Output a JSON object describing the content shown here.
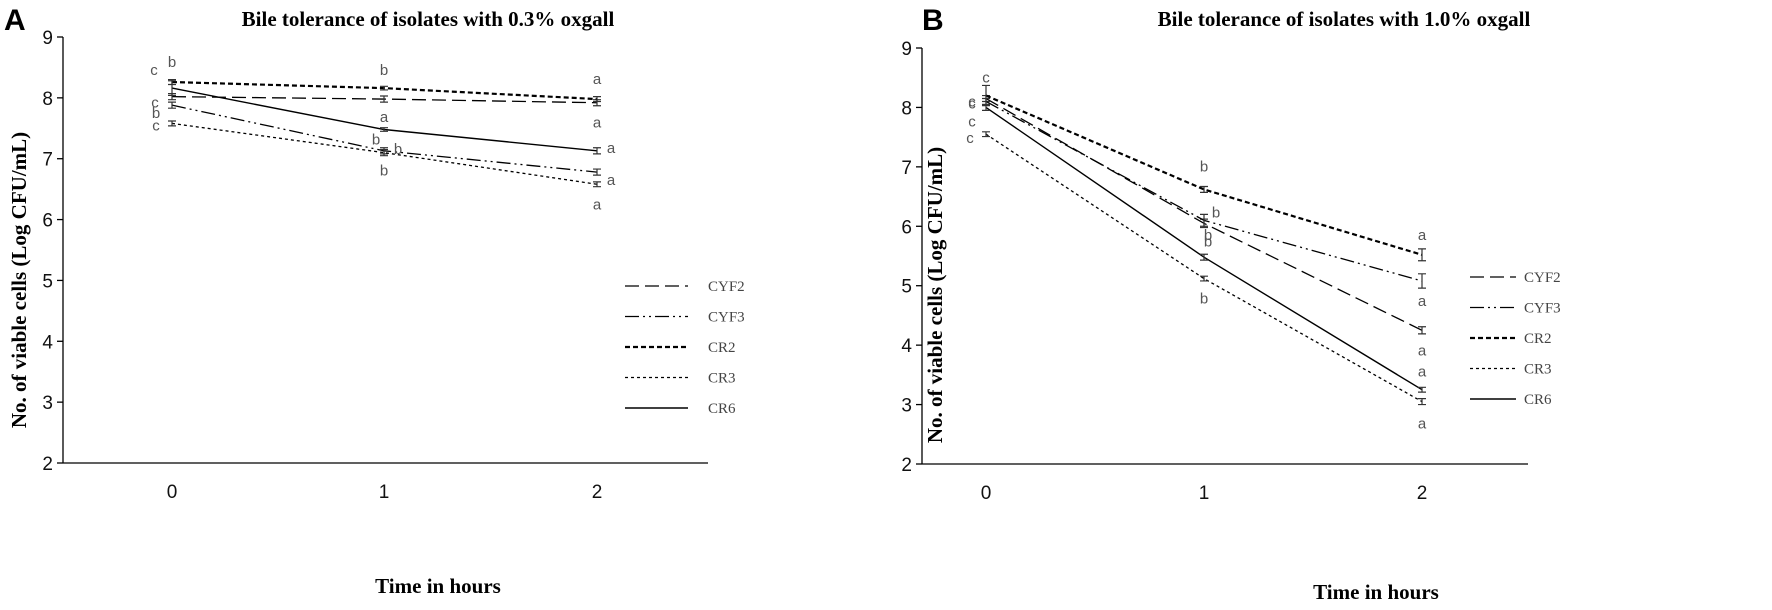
{
  "chart_data": [
    {
      "type": "line",
      "panel": "A",
      "title": "Bile tolerance of isolates with 0.3% oxgall",
      "xlabel": "Time in hours",
      "ylabel": "No. of viable cells (Log CFU/mL)",
      "x": [
        0,
        1,
        2
      ],
      "x_tick_labels": [
        "0",
        "1",
        "2"
      ],
      "ylim": [
        2,
        9
      ],
      "y_ticks": [
        2,
        3,
        4,
        5,
        6,
        7,
        8,
        9
      ],
      "legend_position": "right",
      "series": [
        {
          "name": "CYF2",
          "dash": "long-dash",
          "values": [
            8.02,
            7.98,
            7.92
          ],
          "errors": [
            0.05,
            0.05,
            0.05
          ],
          "sig_letters": [
            "c",
            "a",
            "a"
          ]
        },
        {
          "name": "CYF3",
          "dash": "dash-dot-dot",
          "values": [
            7.88,
            7.13,
            6.78
          ],
          "errors": [
            0.05,
            0.05,
            0.05
          ],
          "sig_letters": [
            "b",
            "b",
            "a"
          ]
        },
        {
          "name": "CR2",
          "dash": "short-dash-bold",
          "values": [
            8.26,
            8.16,
            7.98
          ],
          "errors": [
            0.04,
            0.03,
            0.04
          ],
          "sig_letters": [
            "b",
            "b",
            "a"
          ]
        },
        {
          "name": "CR3",
          "dash": "short-dash",
          "values": [
            7.58,
            7.1,
            6.58
          ],
          "errors": [
            0.04,
            0.05,
            0.04
          ],
          "sig_letters": [
            "c",
            "b",
            "a"
          ]
        },
        {
          "name": "CR6",
          "dash": "solid",
          "values": [
            8.16,
            7.48,
            7.13
          ],
          "errors": [
            0.12,
            0.03,
            0.05
          ],
          "sig_letters": [
            "c",
            "b",
            "a"
          ]
        }
      ]
    },
    {
      "type": "line",
      "panel": "B",
      "title": "Bile tolerance of isolates with 1.0% oxgall",
      "xlabel": "Time in hours",
      "ylabel": "No. of viable cells (Log CFU/mL)",
      "x": [
        0,
        1,
        2
      ],
      "x_tick_labels": [
        "0",
        "1",
        "2"
      ],
      "ylim": [
        2,
        9
      ],
      "y_ticks": [
        2,
        3,
        4,
        5,
        6,
        7,
        8,
        9
      ],
      "legend_position": "right",
      "series": [
        {
          "name": "CYF2",
          "dash": "long-dash",
          "values": [
            8.15,
            6.05,
            4.25
          ],
          "errors": [
            0.05,
            0.07,
            0.06
          ],
          "sig_letters": [
            "c",
            "b",
            "a"
          ]
        },
        {
          "name": "CYF3",
          "dash": "dash-dot-dot",
          "values": [
            8.1,
            6.1,
            5.08
          ],
          "errors": [
            0.05,
            0.1,
            0.12
          ],
          "sig_letters": [
            "c",
            "b",
            "a"
          ]
        },
        {
          "name": "CR2",
          "dash": "short-dash-bold",
          "values": [
            8.2,
            6.62,
            5.52
          ],
          "errors": [
            0.17,
            0.05,
            0.1
          ],
          "sig_letters": [
            "c",
            "b",
            "a"
          ]
        },
        {
          "name": "CR3",
          "dash": "short-dash",
          "values": [
            7.55,
            5.12,
            3.05
          ],
          "errors": [
            0.04,
            0.04,
            0.05
          ],
          "sig_letters": [
            "c",
            "b",
            "a"
          ]
        },
        {
          "name": "CR6",
          "dash": "solid",
          "values": [
            8.0,
            5.48,
            3.25
          ],
          "errors": [
            0.05,
            0.05,
            0.04
          ],
          "sig_letters": [
            "c",
            "b",
            "a"
          ]
        }
      ]
    }
  ]
}
